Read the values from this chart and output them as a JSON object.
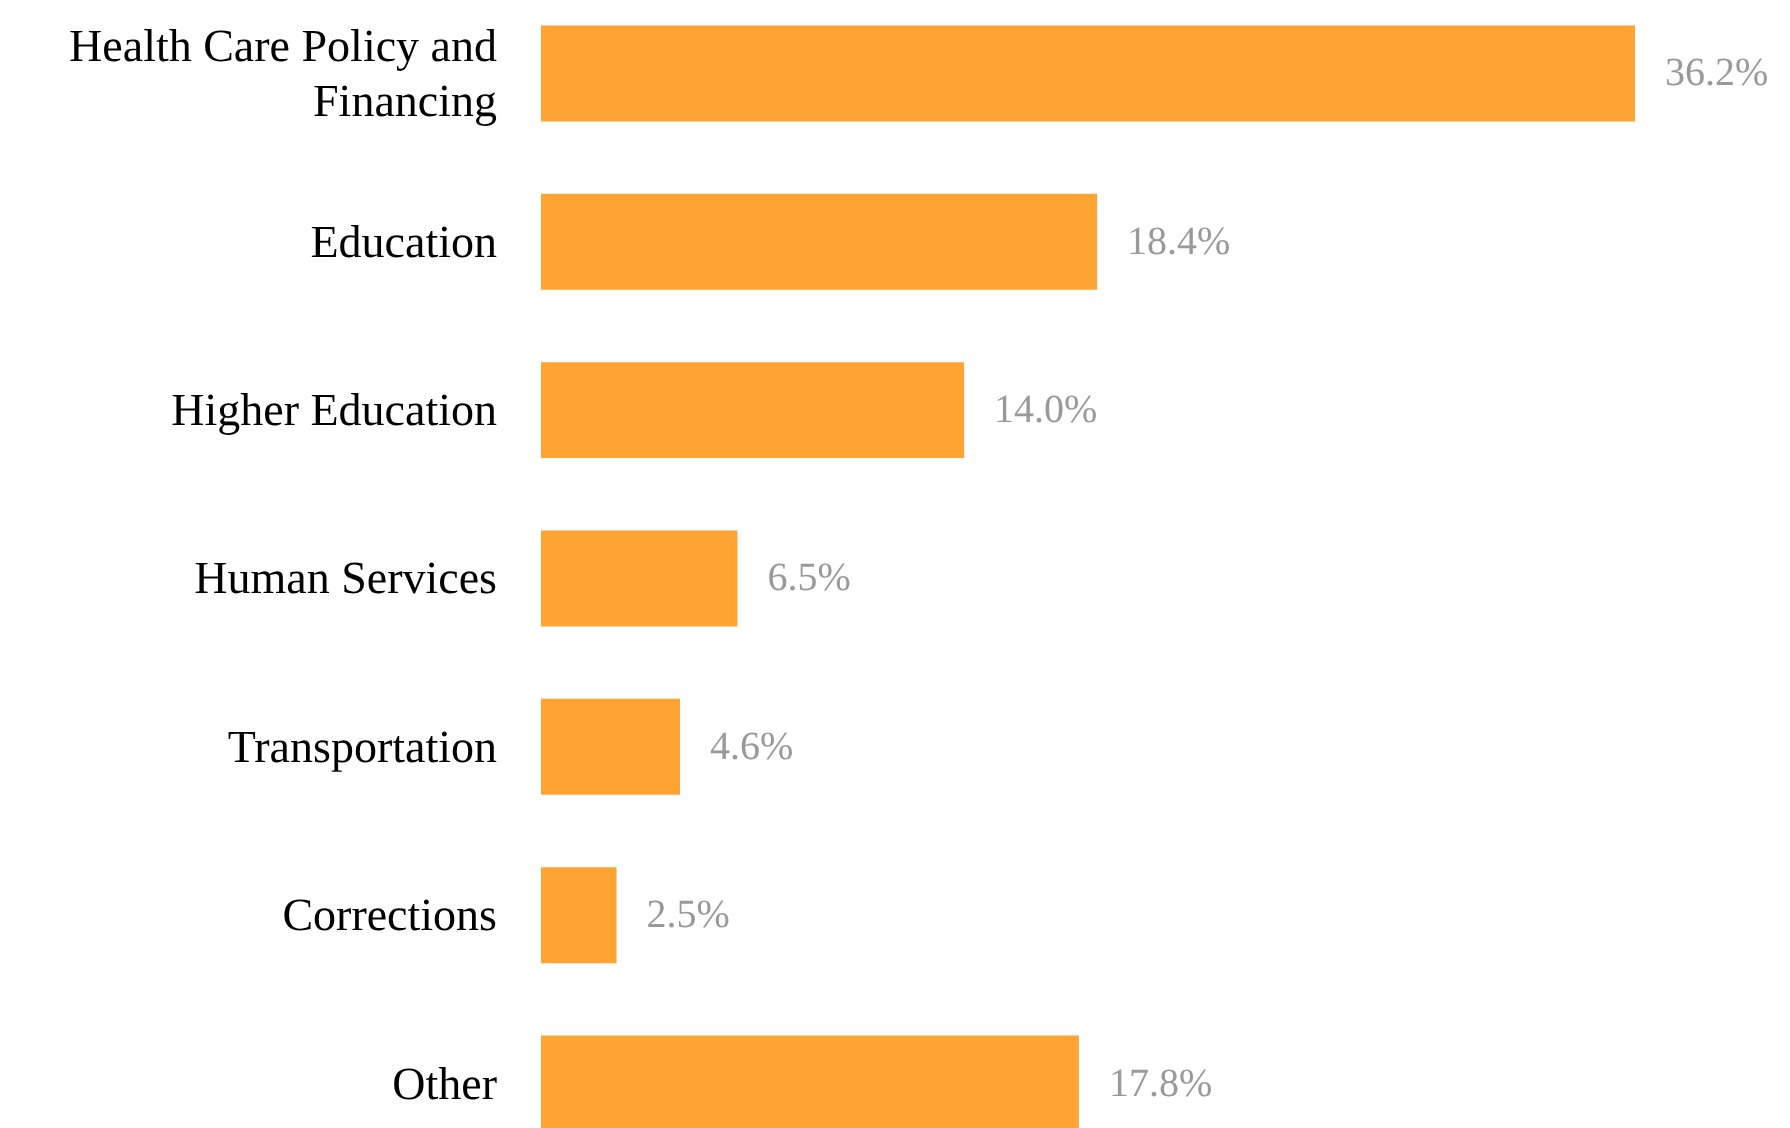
{
  "chart_data": {
    "type": "bar",
    "orientation": "horizontal",
    "categories": [
      "Health Care Policy and Financing",
      "Education",
      "Higher Education",
      "Human Services",
      "Transportation",
      "Corrections",
      "Other"
    ],
    "values": [
      36.2,
      18.4,
      14.0,
      6.5,
      4.6,
      2.5,
      17.8
    ],
    "value_labels": [
      "36.2%",
      "18.4%",
      "14.0%",
      "6.5%",
      "4.6%",
      "2.5%",
      "17.8%"
    ],
    "color": "#ffa333",
    "grid": false
  }
}
